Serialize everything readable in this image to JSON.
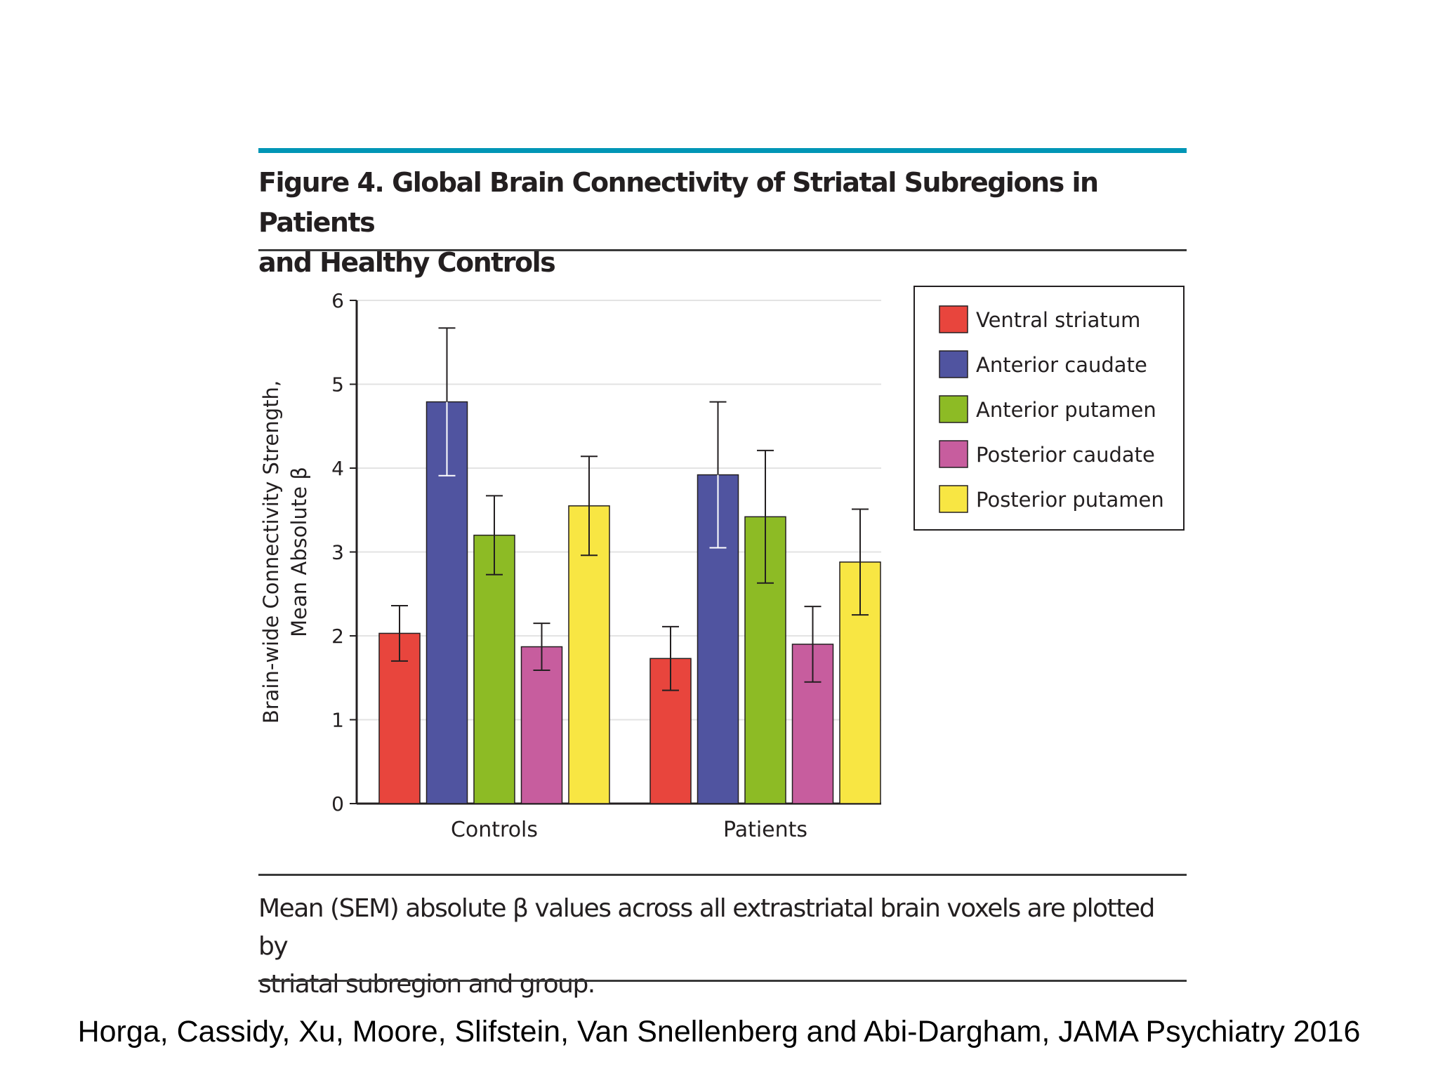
{
  "figure": {
    "title_line1": "Figure 4. Global Brain Connectivity of Striatal Subregions in Patients",
    "title_line2": "and Healthy Controls",
    "caption_line1": "Mean (SEM) absolute β values across all extrastriatal brain voxels are plotted by",
    "caption_line2": "striatal subregion and group.",
    "accent_color": "#0096b6"
  },
  "source": "Horga, Cassidy, Xu, Moore, Slifstein, Van Snellenberg and Abi-Dargham, JAMA Psychiatry 2016",
  "chart_data": {
    "type": "bar",
    "title": "Global Brain Connectivity of Striatal Subregions in Patients and Healthy Controls",
    "xlabel": "",
    "ylabel_line1": "Brain-wide Connectivity Strength,",
    "ylabel_line2": "Mean Absolute β",
    "ylim": [
      0,
      6
    ],
    "yticks": [
      0,
      1,
      2,
      3,
      4,
      5,
      6
    ],
    "grid": true,
    "legend_position": "top-right",
    "categories": [
      "Controls",
      "Patients"
    ],
    "series": [
      {
        "name": "Ventral striatum",
        "color": "#e8453d",
        "values": [
          2.03,
          1.73
        ],
        "sem": [
          0.33,
          0.38
        ]
      },
      {
        "name": "Anterior caudate",
        "color": "#5054a0",
        "values": [
          4.79,
          3.92
        ],
        "sem": [
          0.88,
          0.87
        ]
      },
      {
        "name": "Anterior putamen",
        "color": "#8dbb25",
        "values": [
          3.2,
          3.42
        ],
        "sem": [
          0.47,
          0.79
        ]
      },
      {
        "name": "Posterior caudate",
        "color": "#c75d9e",
        "values": [
          1.87,
          1.9
        ],
        "sem": [
          0.28,
          0.45
        ]
      },
      {
        "name": "Posterior putamen",
        "color": "#f8e643",
        "values": [
          3.55,
          2.88
        ],
        "sem": [
          0.59,
          0.63
        ]
      }
    ]
  }
}
